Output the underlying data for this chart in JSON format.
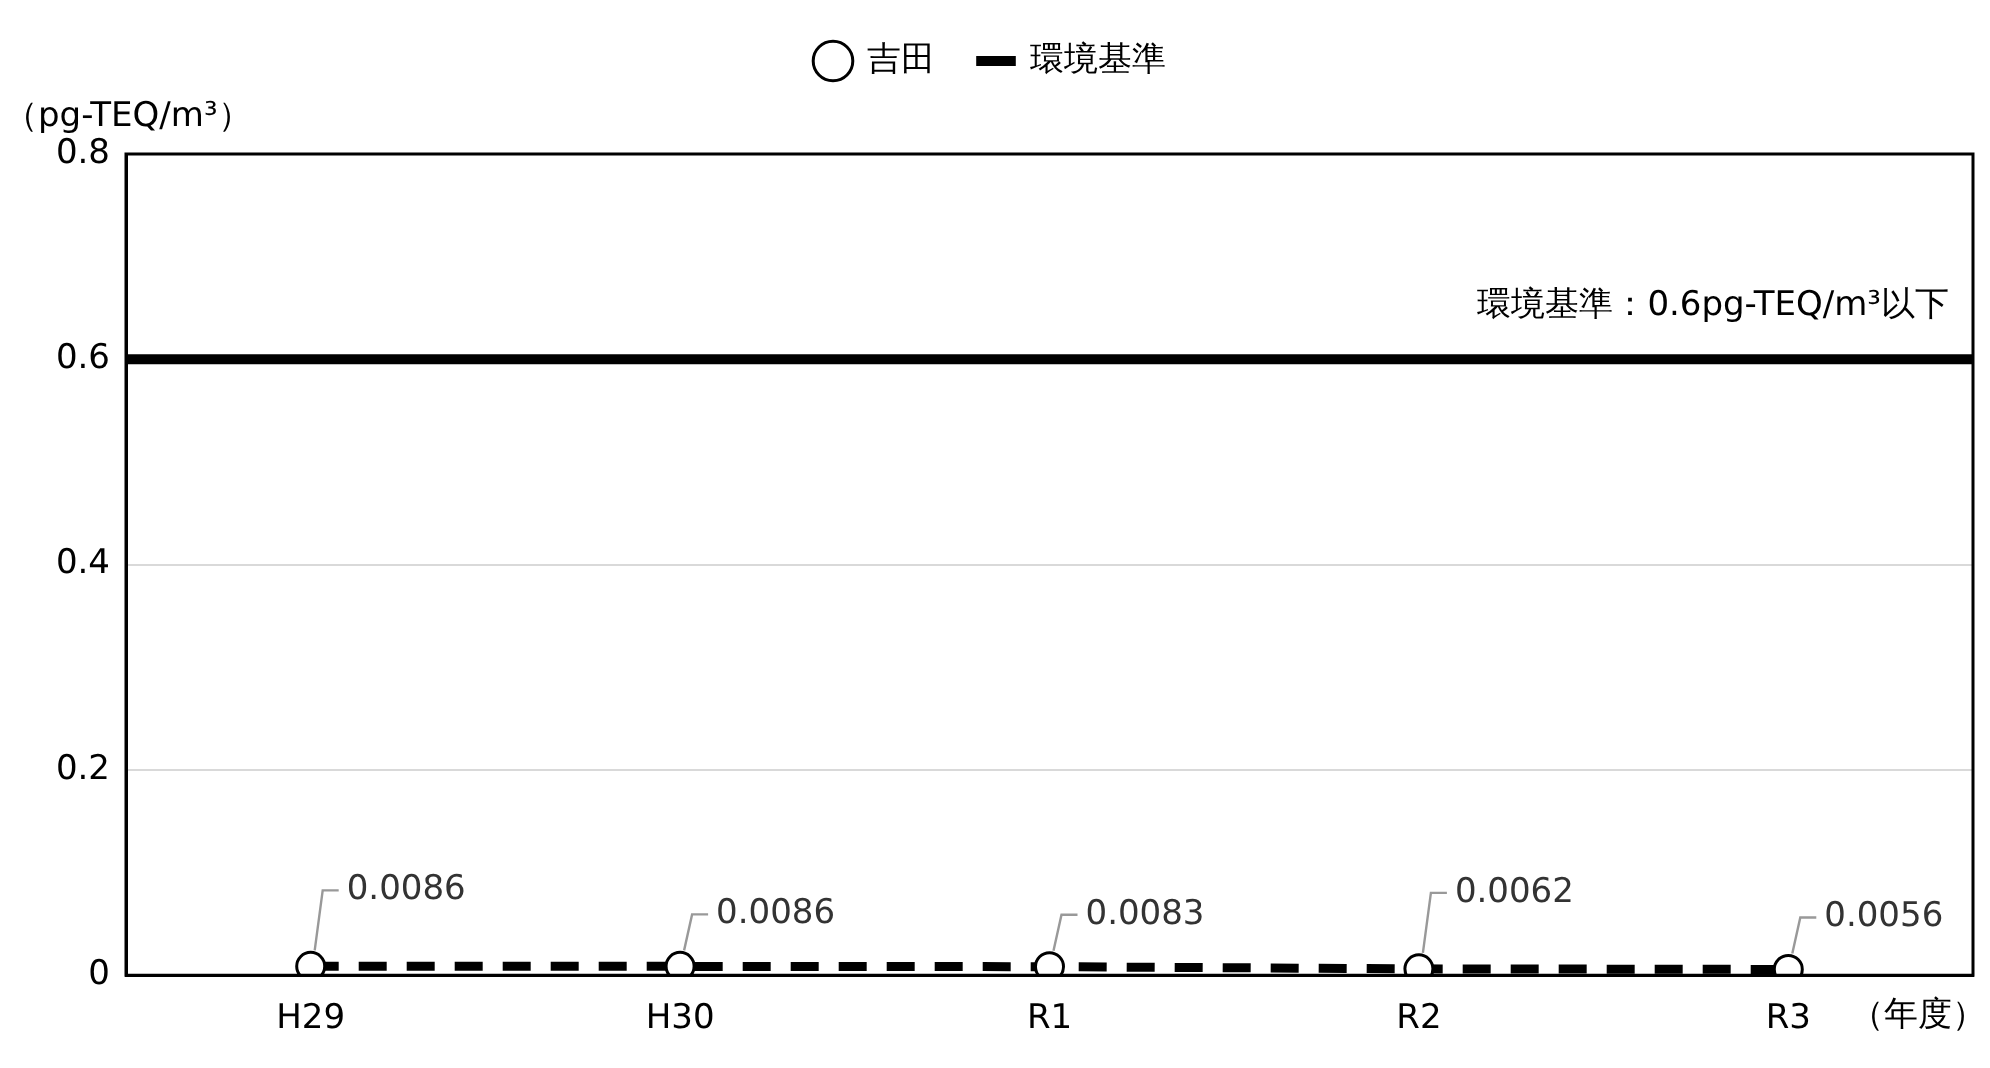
{
  "chart_data": {
    "type": "line",
    "ylabel": "（pg-TEQ/m³）",
    "xlabel": "（年度）",
    "categories": [
      "H29",
      "H30",
      "R1",
      "R2",
      "R3"
    ],
    "series": [
      {
        "name": "吉田",
        "color": "#000000",
        "values": [
          0.0086,
          0.0086,
          0.0083,
          0.0062,
          0.0056
        ]
      }
    ],
    "ylim": [
      0,
      0.8
    ],
    "yticks": [
      0,
      0.2,
      0.4,
      0.6,
      0.8
    ],
    "grid": "y",
    "legend": "top",
    "marker": "circle",
    "line_style": "dashed",
    "data_labels": true,
    "ref_lines": [
      {
        "axis": "y",
        "value": 0.6,
        "label": "環境基準",
        "color": "#000000",
        "line_style": "solid"
      }
    ],
    "annotations": [
      "環境基準：0.6pg-TEQ/m³以下"
    ]
  }
}
